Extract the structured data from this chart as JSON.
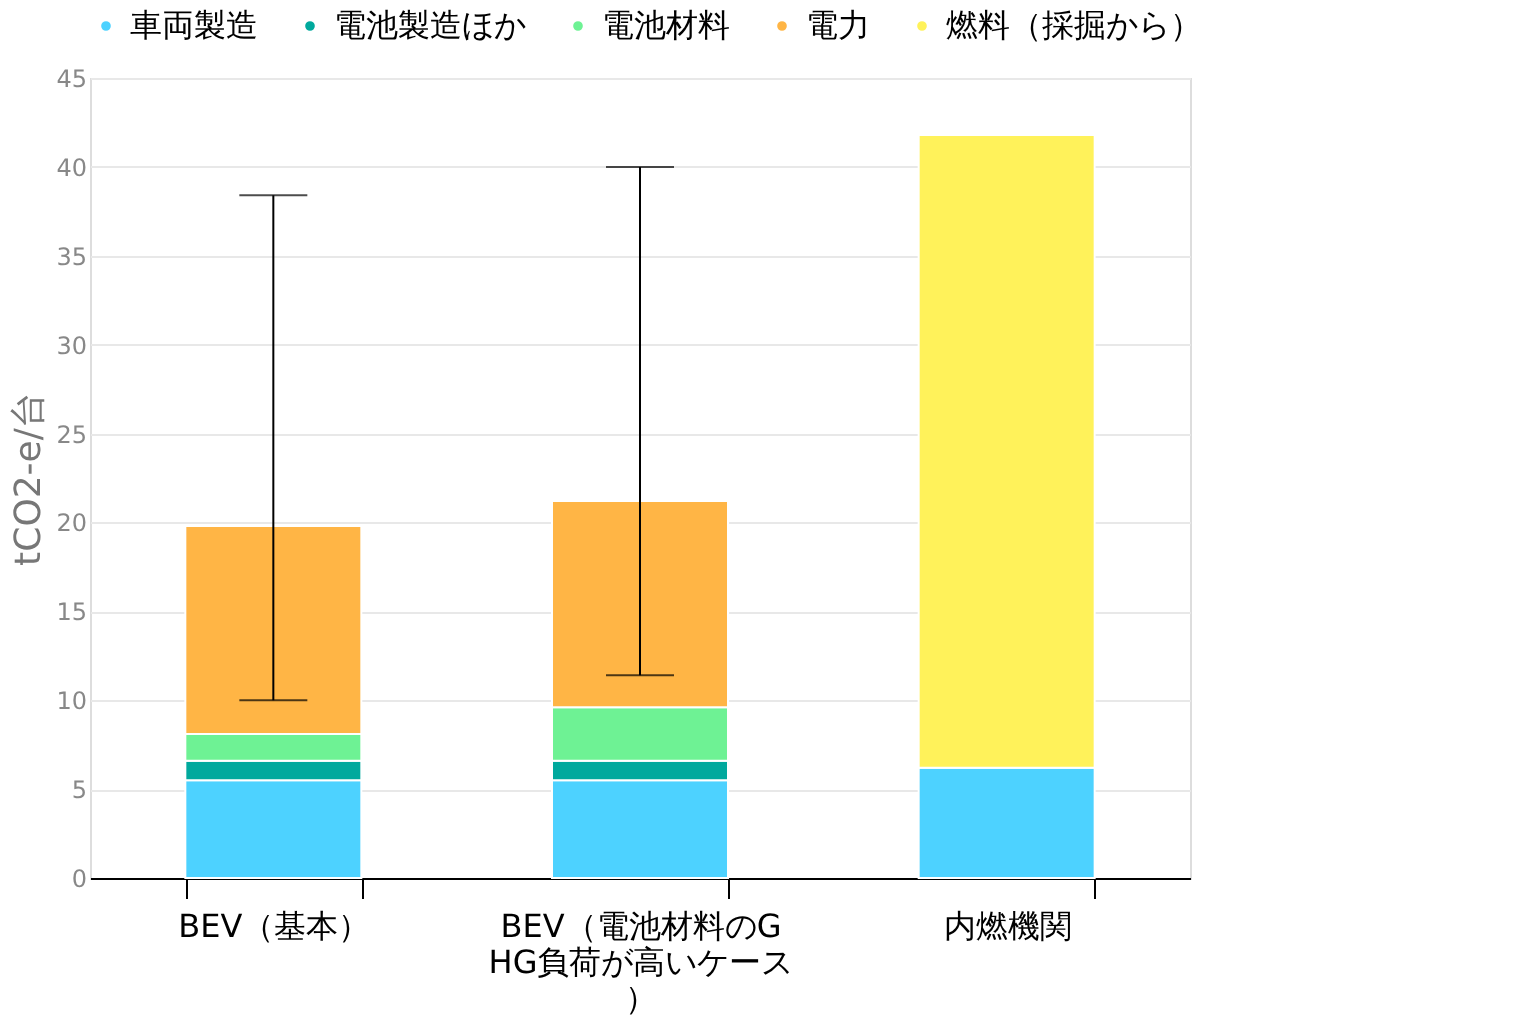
{
  "chart_data": {
    "type": "bar",
    "stacked": true,
    "categories": [
      "BEV（基本）",
      "BEV（電池材料のGHG負荷が高いケース）",
      "内燃機関"
    ],
    "series": [
      {
        "name": "車両製造",
        "color": "#4dd2ff",
        "values": [
          5.5,
          5.5,
          6.2
        ]
      },
      {
        "name": "電池製造ほか",
        "color": "#00a99d",
        "values": [
          1.1,
          1.1,
          null
        ]
      },
      {
        "name": "電池材料",
        "color": "#6ef294",
        "values": [
          1.5,
          3.0,
          null
        ]
      },
      {
        "name": "電力",
        "color": "#ffb545",
        "values": [
          11.7,
          11.6,
          null
        ],
        "errors": [
          [
            10.0,
            38.4
          ],
          [
            11.4,
            40.0
          ],
          null
        ]
      },
      {
        "name": "燃料（採掘から）",
        "color": "#fff25a",
        "values": [
          null,
          null,
          35.6
        ]
      }
    ],
    "ylabel": "tCO2-e/台",
    "ylim": [
      0,
      45
    ],
    "yticks": [
      0,
      5,
      10,
      15,
      20,
      25,
      30,
      35,
      40,
      45
    ],
    "grid": "y",
    "legend": "top"
  }
}
